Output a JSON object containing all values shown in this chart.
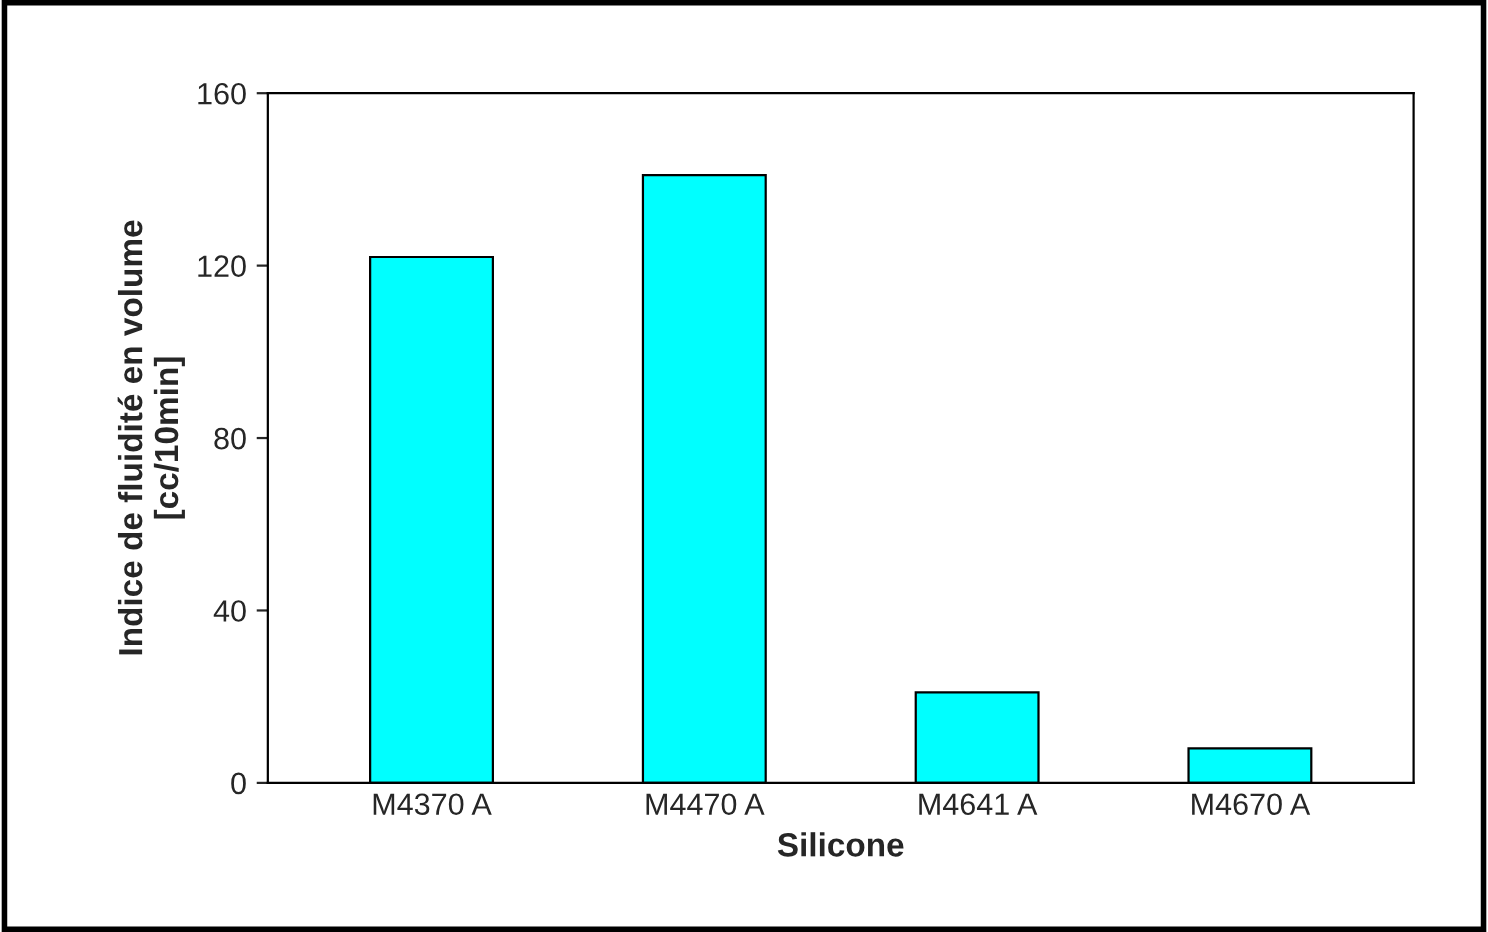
{
  "chart_data": {
    "type": "bar",
    "xlabel": "Silicone",
    "ylabel": "Indice de fluidité en volume\n[cc/10min]",
    "categories": [
      "M4370 A",
      "M4470 A",
      "M4641 A",
      "M4670 A"
    ],
    "values": [
      122,
      141,
      21,
      8
    ],
    "color": "#00ffff",
    "ylim": [
      0,
      160
    ],
    "yticks": [
      0,
      40,
      80,
      120,
      160
    ],
    "grid": false
  }
}
